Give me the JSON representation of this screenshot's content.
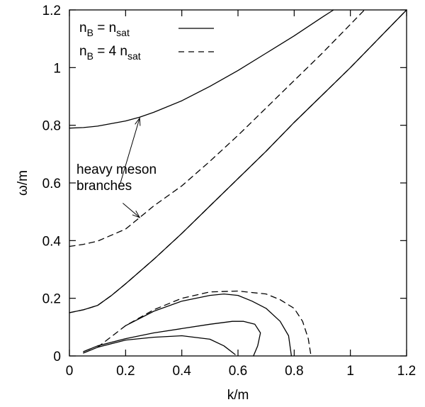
{
  "chart_data": {
    "type": "line",
    "xlabel": "k/m",
    "ylabel": "ω/m",
    "xlim": [
      0,
      1.2
    ],
    "ylim": [
      0,
      1.2
    ],
    "xticks": [
      0,
      0.2,
      0.4,
      0.6,
      0.8,
      1,
      1.2
    ],
    "xtick_labels": [
      "0",
      "0.2",
      "0.4",
      "0.6",
      "0.8",
      "1",
      "1.2"
    ],
    "yticks": [
      0,
      0.2,
      0.4,
      0.6,
      0.8,
      1,
      1.2
    ],
    "ytick_labels": [
      "0",
      "0.2",
      "0.4",
      "0.6",
      "0.8",
      "1",
      "1.2"
    ],
    "grid": false,
    "legend": {
      "placement": "top-left",
      "entries": [
        {
          "base": "n",
          "sub1": "B",
          "mid": " = n",
          "sub2": "sat",
          "style": "solid"
        },
        {
          "base": "n",
          "sub1": "B",
          "mid": " = 4 n",
          "sub2": "sat",
          "style": "dashed"
        }
      ]
    },
    "annotation": {
      "lines": [
        "heavy meson",
        "branches"
      ],
      "arrow_targets": [
        [
          0.25,
          0.825
        ],
        [
          0.25,
          0.48
        ]
      ]
    },
    "series": [
      {
        "style": "solid",
        "curves": [
          [
            [
              0,
              0.79
            ],
            [
              0.05,
              0.792
            ],
            [
              0.1,
              0.797
            ],
            [
              0.2,
              0.815
            ],
            [
              0.25,
              0.828
            ],
            [
              0.3,
              0.845
            ],
            [
              0.4,
              0.885
            ],
            [
              0.5,
              0.935
            ],
            [
              0.6,
              0.99
            ],
            [
              0.7,
              1.05
            ],
            [
              0.8,
              1.11
            ],
            [
              0.9,
              1.175
            ],
            [
              0.94,
              1.2
            ]
          ],
          [
            [
              0,
              0.15
            ],
            [
              0.05,
              0.16
            ],
            [
              0.1,
              0.175
            ],
            [
              0.15,
              0.21
            ],
            [
              0.2,
              0.25
            ],
            [
              0.3,
              0.335
            ],
            [
              0.4,
              0.425
            ],
            [
              0.5,
              0.52
            ],
            [
              0.6,
              0.615
            ],
            [
              0.7,
              0.71
            ],
            [
              0.8,
              0.81
            ],
            [
              0.9,
              0.905
            ],
            [
              1.0,
              1.0
            ],
            [
              1.1,
              1.1
            ],
            [
              1.2,
              1.2
            ]
          ],
          [
            [
              0.05,
              0.01
            ],
            [
              0.1,
              0.03
            ],
            [
              0.2,
              0.055
            ],
            [
              0.3,
              0.065
            ],
            [
              0.4,
              0.07
            ],
            [
              0.5,
              0.058
            ],
            [
              0.55,
              0.035
            ],
            [
              0.59,
              0.005
            ]
          ],
          [
            [
              0.05,
              0.015
            ],
            [
              0.1,
              0.035
            ],
            [
              0.2,
              0.06
            ],
            [
              0.3,
              0.08
            ],
            [
              0.4,
              0.095
            ],
            [
              0.5,
              0.11
            ],
            [
              0.58,
              0.12
            ],
            [
              0.62,
              0.12
            ],
            [
              0.66,
              0.11
            ],
            [
              0.68,
              0.08
            ],
            [
              0.67,
              0.035
            ],
            [
              0.655,
              0.0
            ]
          ],
          [
            [
              0.2,
              0.105
            ],
            [
              0.3,
              0.155
            ],
            [
              0.4,
              0.19
            ],
            [
              0.5,
              0.21
            ],
            [
              0.55,
              0.215
            ],
            [
              0.6,
              0.21
            ],
            [
              0.65,
              0.19
            ],
            [
              0.7,
              0.165
            ],
            [
              0.75,
              0.12
            ],
            [
              0.78,
              0.07
            ],
            [
              0.79,
              0.0
            ]
          ]
        ]
      },
      {
        "style": "dashed",
        "curves": [
          [
            [
              0,
              0.38
            ],
            [
              0.05,
              0.387
            ],
            [
              0.1,
              0.398
            ],
            [
              0.2,
              0.44
            ],
            [
              0.25,
              0.48
            ],
            [
              0.3,
              0.52
            ],
            [
              0.4,
              0.59
            ],
            [
              0.5,
              0.675
            ],
            [
              0.6,
              0.765
            ],
            [
              0.7,
              0.86
            ],
            [
              0.8,
              0.955
            ],
            [
              0.9,
              1.05
            ],
            [
              1.0,
              1.15
            ],
            [
              1.05,
              1.2
            ]
          ],
          [
            [
              0,
              0.15
            ],
            [
              0.05,
              0.16
            ],
            [
              0.1,
              0.175
            ],
            [
              0.15,
              0.21
            ],
            [
              0.2,
              0.25
            ],
            [
              0.3,
              0.335
            ],
            [
              0.4,
              0.425
            ],
            [
              0.5,
              0.52
            ],
            [
              0.6,
              0.615
            ],
            [
              0.7,
              0.71
            ],
            [
              0.8,
              0.81
            ],
            [
              0.9,
              0.905
            ],
            [
              1.0,
              1.0
            ],
            [
              1.1,
              1.1
            ],
            [
              1.2,
              1.2
            ]
          ],
          [
            [
              0.1,
              0.03
            ],
            [
              0.2,
              0.105
            ],
            [
              0.3,
              0.16
            ],
            [
              0.4,
              0.2
            ],
            [
              0.5,
              0.222
            ],
            [
              0.6,
              0.225
            ],
            [
              0.7,
              0.215
            ],
            [
              0.75,
              0.195
            ],
            [
              0.8,
              0.165
            ],
            [
              0.83,
              0.12
            ],
            [
              0.85,
              0.06
            ],
            [
              0.86,
              0.0
            ]
          ]
        ]
      }
    ]
  }
}
